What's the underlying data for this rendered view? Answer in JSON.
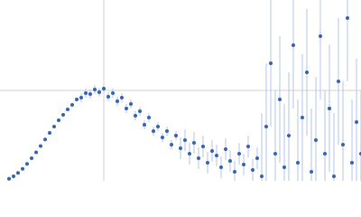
{
  "chart_data": {
    "type": "scatter",
    "x": [
      0.01,
      0.015,
      0.02,
      0.025,
      0.03,
      0.035,
      0.04,
      0.045,
      0.05,
      0.055,
      0.06,
      0.065,
      0.07,
      0.075,
      0.08,
      0.085,
      0.09,
      0.095,
      0.1,
      0.105,
      0.11,
      0.115,
      0.12,
      0.125,
      0.13,
      0.135,
      0.14,
      0.145,
      0.15,
      0.155,
      0.16,
      0.165,
      0.17,
      0.175,
      0.18,
      0.185,
      0.19,
      0.195,
      0.2,
      0.205,
      0.21,
      0.215,
      0.22,
      0.225,
      0.23,
      0.235,
      0.24,
      0.245,
      0.25,
      0.255,
      0.26,
      0.265,
      0.27,
      0.275,
      0.28,
      0.285,
      0.29,
      0.295,
      0.3,
      0.305,
      0.31,
      0.315,
      0.32,
      0.325,
      0.33,
      0.335,
      0.34,
      0.345,
      0.35,
      0.355,
      0.36,
      0.365,
      0.37,
      0.375,
      0.38,
      0.385,
      0.39,
      0.395,
      0.4
    ],
    "series": [
      {
        "color": "#3263b4",
        "error_color": "#b3c6e6",
        "values": [
          0.022,
          0.05,
          0.087,
          0.133,
          0.188,
          0.25,
          0.315,
          0.385,
          0.457,
          0.53,
          0.6,
          0.67,
          0.73,
          0.79,
          0.84,
          0.9,
          0.92,
          0.97,
          0.96,
          1.01,
          0.98,
          1.02,
          0.93,
          0.97,
          0.88,
          0.92,
          0.8,
          0.85,
          0.72,
          0.77,
          0.62,
          0.7,
          0.55,
          0.6,
          0.48,
          0.55,
          0.4,
          0.5,
          0.36,
          0.45,
          0.3,
          0.42,
          0.25,
          0.38,
          0.2,
          0.33,
          0.28,
          0.15,
          0.35,
          0.22,
          0.1,
          0.3,
          0.18,
          0.38,
          0.12,
          0.25,
          0.05,
          0.6,
          1.3,
          0.3,
          0.9,
          0.15,
          0.5,
          1.5,
          0.2,
          0.7,
          1.2,
          0.1,
          0.45,
          1.6,
          0.3,
          0.8,
          0.05,
          1.1,
          0.4,
          1.8,
          0.2,
          0.65,
          0.3
        ],
        "errors": [
          0.01,
          0.01,
          0.01,
          0.01,
          0.01,
          0.01,
          0.01,
          0.01,
          0.01,
          0.01,
          0.01,
          0.01,
          0.01,
          0.01,
          0.01,
          0.01,
          0.05,
          0.05,
          0.05,
          0.05,
          0.05,
          0.05,
          0.05,
          0.05,
          0.05,
          0.05,
          0.05,
          0.05,
          0.05,
          0.05,
          0.05,
          0.05,
          0.05,
          0.05,
          0.05,
          0.05,
          0.05,
          0.05,
          0.12,
          0.12,
          0.12,
          0.12,
          0.12,
          0.12,
          0.12,
          0.12,
          0.12,
          0.12,
          0.12,
          0.12,
          0.12,
          0.12,
          0.12,
          0.12,
          0.12,
          0.12,
          0.7,
          0.7,
          0.7,
          0.7,
          0.7,
          0.7,
          0.7,
          0.7,
          0.7,
          0.7,
          0.7,
          0.7,
          0.7,
          0.7,
          0.7,
          0.7,
          0.7,
          0.7,
          0.7,
          0.7,
          0.7,
          0.7,
          0.7
        ]
      }
    ],
    "xlim": [
      0,
      0.4
    ],
    "ylim": [
      0,
      2
    ],
    "xticks": [
      0.115
    ],
    "yticks": [
      1
    ],
    "grid": true,
    "grid_color": "#d0d0d0"
  }
}
